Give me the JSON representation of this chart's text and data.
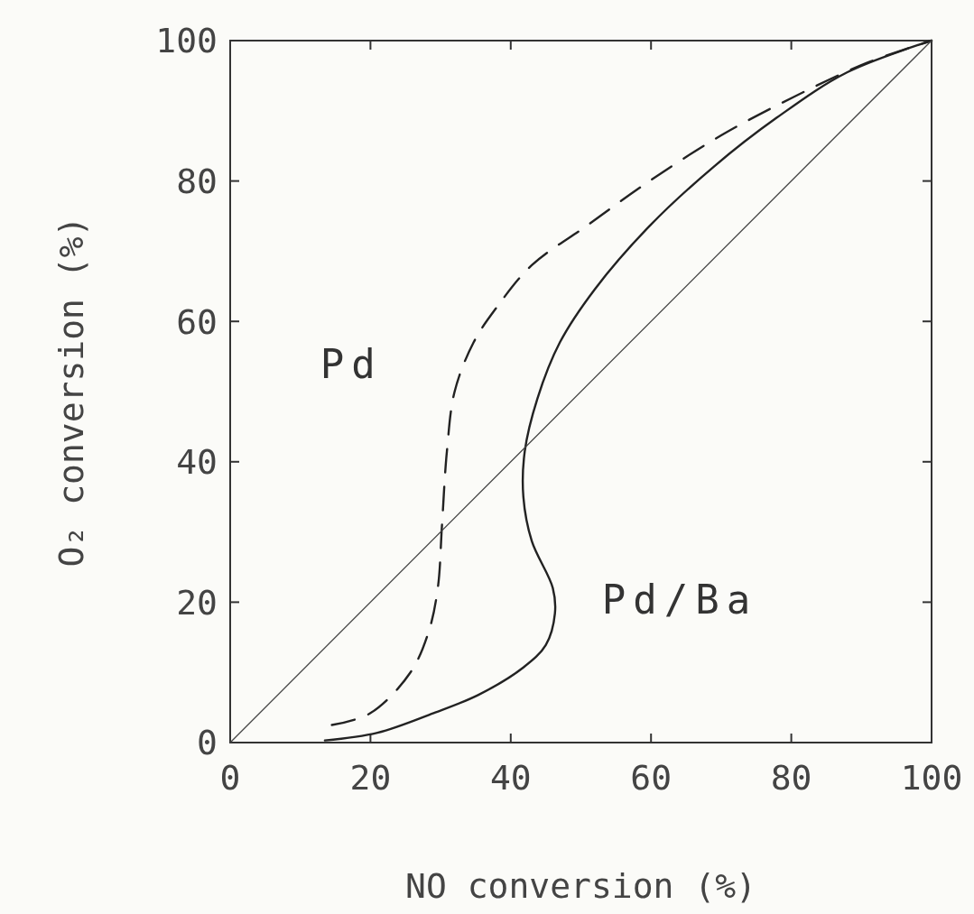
{
  "chart_data": {
    "type": "line",
    "xlabel": "NO conversion (%)",
    "ylabel": "O₂ conversion (%)",
    "xlim": [
      0,
      100
    ],
    "ylim": [
      0,
      100
    ],
    "xticks": [
      0,
      20,
      40,
      60,
      80,
      100
    ],
    "yticks": [
      0,
      20,
      40,
      60,
      80,
      100
    ],
    "grid": false,
    "legend": false,
    "marker": "none",
    "series": [
      {
        "name": "Pd",
        "color": "#222222",
        "line_style": "dashed",
        "x": [
          14.5,
          20,
          25.7,
          28.3,
          29.6,
          30.2,
          30.9,
          32,
          34.7,
          38,
          43,
          50.8,
          59.8,
          70,
          80.4,
          90.7,
          100
        ],
        "values": [
          2.5,
          4.2,
          10,
          15.8,
          22,
          31,
          41.5,
          50,
          57,
          62,
          68,
          73.6,
          80,
          86.5,
          92,
          96.8,
          100
        ]
      },
      {
        "name": "Pd/Ba",
        "color": "#222222",
        "line_style": "solid",
        "x": [
          13.5,
          21,
          29,
          35.4,
          41.8,
          45,
          46.3,
          46,
          43,
          41.8,
          42,
          43.8,
          47,
          52,
          59.8,
          68.9,
          77.9,
          88,
          100
        ],
        "values": [
          0.3,
          1.4,
          4.2,
          6.8,
          10.7,
          13.9,
          18.4,
          22,
          28.7,
          35,
          41.5,
          49,
          57,
          64.6,
          73.6,
          82,
          89,
          95.5,
          100
        ]
      },
      {
        "color": "#444444",
        "line_style": "solid",
        "x": [
          0,
          100
        ],
        "values": [
          0,
          100
        ]
      }
    ]
  }
}
